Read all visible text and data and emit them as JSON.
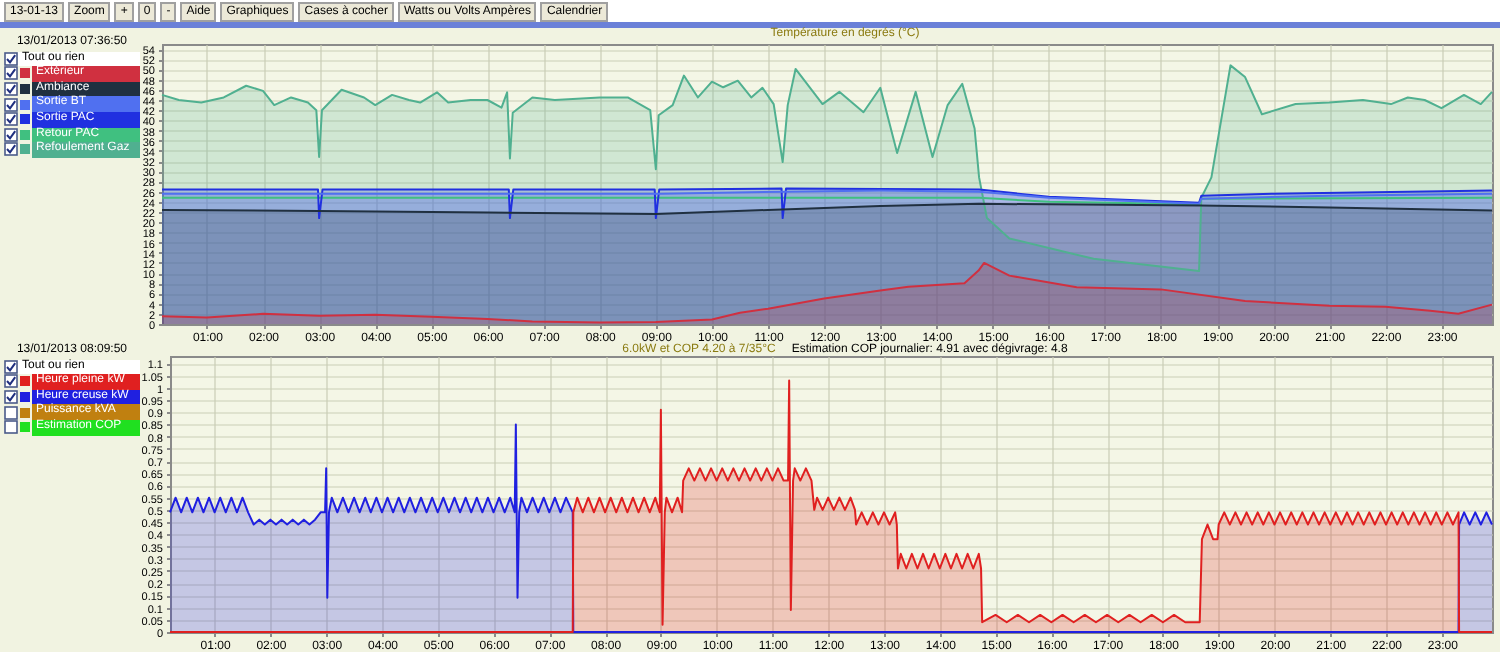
{
  "chart_data": [
    {
      "type": "area",
      "title": "Température en degrés (°C)",
      "legend": "left",
      "grid": true,
      "xlim": [
        0.2,
        23.9
      ],
      "ylim": [
        0,
        55
      ],
      "xticks": [
        {
          "value": 1,
          "label": "01:00"
        },
        {
          "value": 2,
          "label": "02:00"
        },
        {
          "value": 3,
          "label": "03:00"
        },
        {
          "value": 4,
          "label": "04:00"
        },
        {
          "value": 5,
          "label": "05:00"
        },
        {
          "value": 6,
          "label": "06:00"
        },
        {
          "value": 7,
          "label": "07:00"
        },
        {
          "value": 8,
          "label": "08:00"
        },
        {
          "value": 9,
          "label": "09:00"
        },
        {
          "value": 10,
          "label": "10:00"
        },
        {
          "value": 11,
          "label": "11:00"
        },
        {
          "value": 12,
          "label": "12:00"
        },
        {
          "value": 13,
          "label": "13:00"
        },
        {
          "value": 14,
          "label": "14:00"
        },
        {
          "value": 15,
          "label": "15:00"
        },
        {
          "value": 16,
          "label": "16:00"
        },
        {
          "value": 17,
          "label": "17:00"
        },
        {
          "value": 18,
          "label": "18:00"
        },
        {
          "value": 19,
          "label": "19:00"
        },
        {
          "value": 20,
          "label": "20:00"
        },
        {
          "value": 21,
          "label": "21:00"
        },
        {
          "value": 22,
          "label": "22:00"
        },
        {
          "value": 23,
          "label": "23:00"
        }
      ],
      "yticks": [
        0,
        2,
        4,
        6,
        8,
        10,
        12,
        14,
        16,
        18,
        20,
        22,
        24,
        26,
        28,
        30,
        32,
        34,
        36,
        38,
        40,
        42,
        44,
        46,
        48,
        50,
        52,
        54
      ],
      "annotations": [
        "13/01/2013 07:36:50",
        "Tout ou rien",
        "13-01-13",
        "Zoom",
        "+",
        "0",
        "-",
        "Aide",
        "Graphiques",
        "Cases à cocher",
        "Watts ou Volts Ampères",
        "Calendrier"
      ],
      "series": [
        {
          "name": "Extérieur",
          "color": "#d03040",
          "x": [
            0.2,
            1,
            2,
            3,
            4,
            5,
            6,
            6.8,
            8,
            9,
            10,
            10.5,
            11,
            12,
            13,
            13.5,
            14.5,
            14.75,
            14.85,
            15.3,
            16.5,
            18,
            19.5,
            21,
            22,
            22.8,
            23.3,
            23.9
          ],
          "values": [
            1.5,
            1.3,
            2.0,
            1.6,
            1.8,
            1.4,
            1.0,
            0.5,
            0.3,
            0.4,
            0.9,
            2.2,
            3.0,
            5.0,
            6.6,
            7.3,
            8.0,
            10.5,
            12.0,
            9.5,
            7.2,
            6.8,
            4.5,
            3.6,
            3.4,
            2.6,
            2.0,
            3.8
          ]
        },
        {
          "name": "Ambiance",
          "color": "#203040",
          "x": [
            0.2,
            3,
            6,
            9,
            11,
            13,
            14.76,
            16,
            18.7,
            21,
            23.9
          ],
          "values": [
            22.4,
            22.2,
            21.9,
            21.6,
            22.4,
            23.2,
            23.6,
            23.5,
            23.3,
            22.9,
            22.3
          ]
        },
        {
          "name": "Sortie BT",
          "color": "#5070f0",
          "x": [
            0.2,
            9.1,
            11.3,
            13.0,
            14.76,
            16.0,
            18.68,
            18.72,
            21.0,
            23.9
          ],
          "values": [
            25.6,
            25.6,
            26.0,
            26.2,
            26.0,
            24.8,
            23.6,
            24.6,
            25.2,
            25.6
          ]
        },
        {
          "name": "Sortie PAC",
          "color": "#2030e0",
          "x": [
            0.2,
            2.98,
            3.0,
            3.06,
            6.38,
            6.4,
            6.46,
            8.98,
            9.0,
            9.06,
            11.24,
            11.26,
            11.32,
            14.76,
            16.0,
            18.68,
            18.72,
            20.0,
            23.9
          ],
          "values": [
            26.4,
            26.4,
            20.8,
            26.4,
            26.4,
            20.8,
            26.4,
            26.4,
            20.8,
            26.4,
            26.6,
            20.8,
            26.6,
            26.4,
            25.0,
            23.8,
            25.2,
            25.6,
            26.2
          ]
        },
        {
          "name": "Retour PAC",
          "type": "line",
          "color": "#40c080",
          "x": [
            0.2,
            14.76,
            16.0,
            18.68,
            18.72,
            23.9
          ],
          "values": [
            24.8,
            24.8,
            24.0,
            23.5,
            24.6,
            24.8
          ]
        },
        {
          "name": "Refoulement Gaz",
          "color": "#50b090",
          "x": [
            0.2,
            0.5,
            0.9,
            1.3,
            1.7,
            2.0,
            2.2,
            2.5,
            2.8,
            2.95,
            3.0,
            3.05,
            3.4,
            3.8,
            4.0,
            4.3,
            4.6,
            4.8,
            5.1,
            5.3,
            5.7,
            6.0,
            6.25,
            6.35,
            6.4,
            6.45,
            6.8,
            7.2,
            8.0,
            8.5,
            8.9,
            9.0,
            9.05,
            9.3,
            9.5,
            9.75,
            10.0,
            10.2,
            10.46,
            10.7,
            10.9,
            11.1,
            11.26,
            11.35,
            11.49,
            11.97,
            12.27,
            12.7,
            13.0,
            13.3,
            13.63,
            13.93,
            14.2,
            14.46,
            14.68,
            14.76,
            14.9,
            15.3,
            16.8,
            18.68,
            18.72,
            18.9,
            19.24,
            19.5,
            19.8,
            20.4,
            21.0,
            21.6,
            22.1,
            22.4,
            22.7,
            23.0,
            23.4,
            23.7,
            23.9
          ],
          "values": [
            45,
            44,
            43.5,
            44.5,
            46.8,
            45.8,
            43,
            44.5,
            43.5,
            42,
            32.8,
            42,
            46,
            44.5,
            43,
            45,
            44,
            43.5,
            45.5,
            43.5,
            44,
            44,
            42.5,
            45.5,
            32.5,
            41.5,
            44.5,
            44,
            44.5,
            44.5,
            42,
            30.4,
            41,
            43,
            48.8,
            44.5,
            47.6,
            46.5,
            47.8,
            44.5,
            46.4,
            43.2,
            31.8,
            43,
            50.1,
            43.2,
            45.6,
            41.6,
            46.4,
            33.6,
            45.6,
            32.8,
            43,
            47.2,
            38.4,
            28.8,
            20.8,
            16.8,
            12.8,
            10.4,
            24.8,
            28.8,
            50.8,
            48.5,
            41.2,
            43.2,
            43.5,
            44,
            43.2,
            44.5,
            44,
            42.4,
            45,
            43.2,
            45.6
          ]
        }
      ]
    },
    {
      "type": "area",
      "title": "6.0kW et COP 4.20 à 7/35°C",
      "legend": "left",
      "grid": true,
      "xlim": [
        0.2,
        23.9
      ],
      "ylim": [
        0,
        1.13
      ],
      "xticks": [
        {
          "value": 1,
          "label": "01:00"
        },
        {
          "value": 2,
          "label": "02:00"
        },
        {
          "value": 3,
          "label": "03:00"
        },
        {
          "value": 4,
          "label": "04:00"
        },
        {
          "value": 5,
          "label": "05:00"
        },
        {
          "value": 6,
          "label": "06:00"
        },
        {
          "value": 7,
          "label": "07:00"
        },
        {
          "value": 8,
          "label": "08:00"
        },
        {
          "value": 9,
          "label": "09:00"
        },
        {
          "value": 10,
          "label": "10:00"
        },
        {
          "value": 11,
          "label": "11:00"
        },
        {
          "value": 12,
          "label": "12:00"
        },
        {
          "value": 13,
          "label": "13:00"
        },
        {
          "value": 14,
          "label": "14:00"
        },
        {
          "value": 15,
          "label": "15:00"
        },
        {
          "value": 16,
          "label": "16:00"
        },
        {
          "value": 17,
          "label": "17:00"
        },
        {
          "value": 18,
          "label": "18:00"
        },
        {
          "value": 19,
          "label": "19:00"
        },
        {
          "value": 20,
          "label": "20:00"
        },
        {
          "value": 21,
          "label": "21:00"
        },
        {
          "value": 22,
          "label": "22:00"
        },
        {
          "value": 23,
          "label": "23:00"
        }
      ],
      "yticks": [
        0,
        0.05,
        0.1,
        0.15,
        0.2,
        0.25,
        0.3,
        0.35,
        0.4,
        0.45,
        0.5,
        0.55,
        0.6,
        0.65,
        0.7,
        0.75,
        0.8,
        0.85,
        0.9,
        0.95,
        1,
        1.05,
        1.1
      ],
      "annotations": [
        "Estimation COP journalier: 4.91 avec dégivrage: 4.8",
        "13/01/2013 08:09:50",
        "Tout ou rien"
      ],
      "series": [
        {
          "name": "Heure pleine kW",
          "color": "#e02020",
          "x": [
            0.2,
            7.42,
            7.43,
            7.5,
            7.6,
            7.7,
            7.8,
            7.9,
            8.0,
            8.1,
            8.2,
            8.3,
            8.4,
            8.5,
            8.6,
            8.7,
            8.8,
            8.9,
            8.98,
            9.0,
            9.03,
            9.07,
            9.1,
            9.2,
            9.3,
            9.38,
            9.4,
            9.5,
            9.6,
            9.7,
            9.8,
            9.9,
            10.0,
            10.1,
            10.2,
            10.3,
            10.4,
            10.5,
            10.6,
            10.7,
            10.8,
            10.9,
            11.0,
            11.1,
            11.2,
            11.28,
            11.3,
            11.33,
            11.37,
            11.4,
            11.5,
            11.6,
            11.7,
            11.75,
            11.8,
            11.9,
            12.0,
            12.1,
            12.2,
            12.3,
            12.4,
            12.48,
            12.5,
            12.6,
            12.7,
            12.8,
            12.9,
            13.0,
            13.1,
            13.2,
            13.23,
            13.25,
            13.3,
            13.4,
            13.5,
            13.6,
            13.7,
            13.8,
            13.9,
            14.0,
            14.1,
            14.2,
            14.3,
            14.4,
            14.5,
            14.6,
            14.7,
            14.74,
            14.76,
            15.0,
            15.2,
            15.4,
            15.6,
            15.8,
            16.0,
            16.2,
            16.4,
            16.6,
            16.8,
            17.0,
            17.2,
            17.4,
            17.6,
            17.8,
            18.0,
            18.2,
            18.4,
            18.66,
            18.7,
            18.8,
            18.9,
            18.98,
            19.0,
            19.1,
            19.2,
            19.3,
            19.4,
            19.5,
            19.6,
            19.7,
            19.8,
            19.9,
            20.0,
            20.1,
            20.2,
            20.3,
            20.4,
            20.5,
            20.6,
            20.7,
            20.8,
            20.9,
            21.0,
            21.1,
            21.2,
            21.3,
            21.4,
            21.5,
            21.6,
            21.7,
            21.8,
            21.9,
            22.0,
            22.1,
            22.2,
            22.3,
            22.4,
            22.5,
            22.6,
            22.7,
            22.8,
            22.9,
            23.0,
            23.1,
            23.2,
            23.3,
            23.31,
            23.9
          ],
          "values": [
            0,
            0,
            0.49,
            0.55,
            0.49,
            0.55,
            0.49,
            0.55,
            0.49,
            0.55,
            0.49,
            0.55,
            0.49,
            0.55,
            0.49,
            0.55,
            0.49,
            0.55,
            0.49,
            0.91,
            0.03,
            0.49,
            0.55,
            0.49,
            0.55,
            0.49,
            0.62,
            0.67,
            0.62,
            0.67,
            0.62,
            0.67,
            0.62,
            0.67,
            0.62,
            0.67,
            0.62,
            0.67,
            0.62,
            0.67,
            0.62,
            0.67,
            0.62,
            0.67,
            0.62,
            0.62,
            1.03,
            0.09,
            0.62,
            0.67,
            0.62,
            0.67,
            0.62,
            0.5,
            0.55,
            0.5,
            0.55,
            0.5,
            0.55,
            0.5,
            0.55,
            0.5,
            0.44,
            0.49,
            0.44,
            0.49,
            0.44,
            0.49,
            0.44,
            0.49,
            0.44,
            0.26,
            0.32,
            0.26,
            0.32,
            0.26,
            0.32,
            0.26,
            0.32,
            0.26,
            0.32,
            0.26,
            0.32,
            0.26,
            0.32,
            0.26,
            0.32,
            0.26,
            0.04,
            0.07,
            0.04,
            0.07,
            0.04,
            0.07,
            0.04,
            0.07,
            0.04,
            0.07,
            0.04,
            0.07,
            0.04,
            0.07,
            0.04,
            0.07,
            0.04,
            0.07,
            0.04,
            0.04,
            0.38,
            0.44,
            0.38,
            0.38,
            0.44,
            0.49,
            0.44,
            0.49,
            0.44,
            0.49,
            0.44,
            0.49,
            0.44,
            0.49,
            0.44,
            0.49,
            0.44,
            0.49,
            0.44,
            0.49,
            0.44,
            0.49,
            0.44,
            0.49,
            0.44,
            0.49,
            0.44,
            0.49,
            0.44,
            0.49,
            0.44,
            0.49,
            0.44,
            0.49,
            0.44,
            0.49,
            0.44,
            0.49,
            0.44,
            0.49,
            0.44,
            0.49,
            0.44,
            0.49,
            0.44,
            0.49,
            0.44,
            0.49,
            0,
            0
          ]
        },
        {
          "name": "Heure creuse kW",
          "color": "#2020e0",
          "x": [
            0.2,
            0.3,
            0.4,
            0.5,
            0.6,
            0.7,
            0.8,
            0.9,
            1.0,
            1.1,
            1.2,
            1.3,
            1.4,
            1.5,
            1.6,
            1.7,
            1.8,
            1.9,
            2.0,
            2.1,
            2.2,
            2.3,
            2.4,
            2.5,
            2.6,
            2.7,
            2.8,
            2.9,
            2.98,
            3.0,
            3.02,
            3.05,
            3.1,
            3.2,
            3.3,
            3.4,
            3.5,
            3.6,
            3.7,
            3.8,
            3.9,
            4.0,
            4.1,
            4.2,
            4.3,
            4.4,
            4.5,
            4.6,
            4.7,
            4.8,
            4.9,
            5.0,
            5.1,
            5.2,
            5.3,
            5.4,
            5.5,
            5.6,
            5.7,
            5.8,
            5.9,
            6.0,
            6.1,
            6.2,
            6.3,
            6.38,
            6.4,
            6.43,
            6.46,
            6.5,
            6.6,
            6.7,
            6.8,
            6.9,
            7.0,
            7.1,
            7.2,
            7.3,
            7.42,
            7.43,
            23.3,
            23.31,
            23.4,
            23.5,
            23.6,
            23.7,
            23.8,
            23.9
          ],
          "values": [
            0.49,
            0.55,
            0.49,
            0.55,
            0.49,
            0.55,
            0.49,
            0.55,
            0.49,
            0.55,
            0.49,
            0.55,
            0.49,
            0.55,
            0.49,
            0.44,
            0.46,
            0.44,
            0.46,
            0.44,
            0.46,
            0.44,
            0.46,
            0.44,
            0.46,
            0.44,
            0.46,
            0.49,
            0.49,
            0.67,
            0.14,
            0.49,
            0.55,
            0.49,
            0.55,
            0.49,
            0.55,
            0.49,
            0.55,
            0.49,
            0.55,
            0.49,
            0.55,
            0.49,
            0.55,
            0.49,
            0.55,
            0.49,
            0.55,
            0.49,
            0.55,
            0.49,
            0.55,
            0.49,
            0.55,
            0.49,
            0.55,
            0.49,
            0.55,
            0.49,
            0.55,
            0.49,
            0.55,
            0.49,
            0.55,
            0.49,
            0.85,
            0.14,
            0.49,
            0.55,
            0.49,
            0.55,
            0.49,
            0.55,
            0.49,
            0.55,
            0.49,
            0.55,
            0.49,
            0,
            0,
            0.44,
            0.49,
            0.44,
            0.49,
            0.44,
            0.49,
            0.44
          ]
        },
        {
          "name": "Puissance kVA",
          "color": "#c08010"
        },
        {
          "name": "Estimation COP",
          "color": "#20e020"
        }
      ]
    }
  ]
}
